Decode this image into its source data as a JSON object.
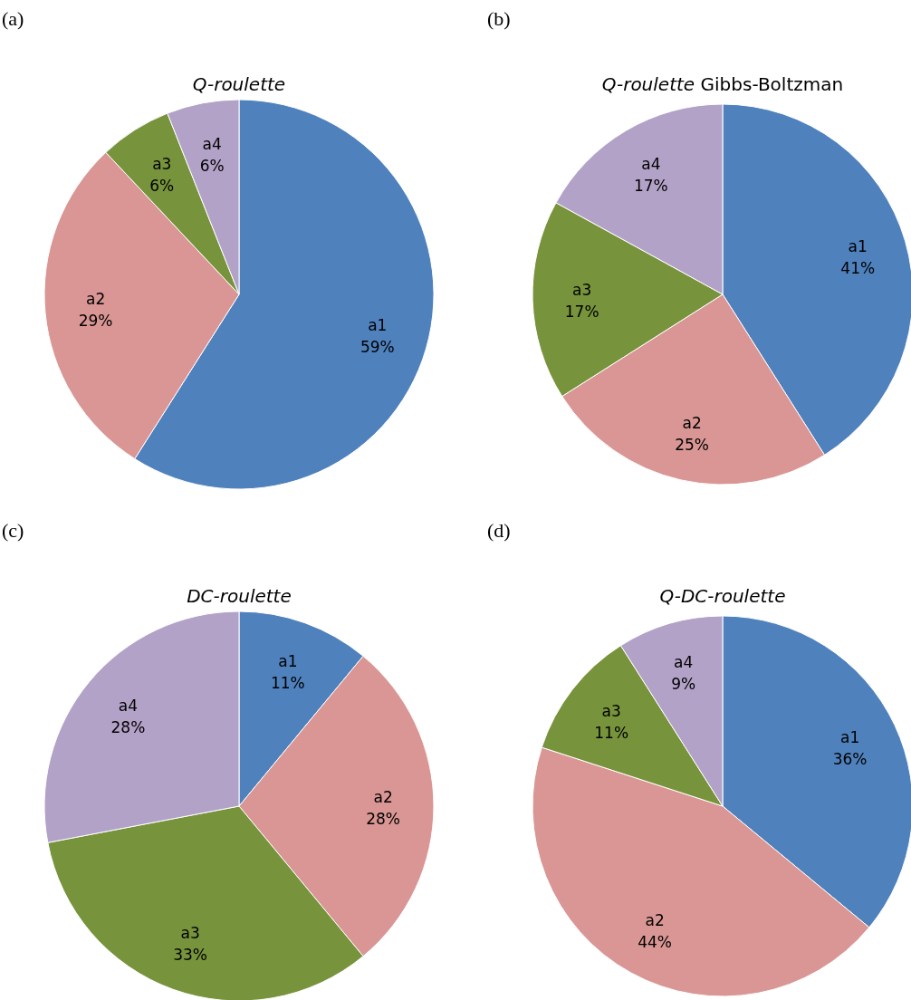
{
  "chart_data": [
    {
      "type": "pie",
      "title": "Q-roulette",
      "categories": [
        "a1",
        "a2",
        "a3",
        "a4"
      ],
      "values": [
        59,
        29,
        6,
        6
      ],
      "value_labels": [
        "59%",
        "29%",
        "6%",
        "6%"
      ],
      "colors": [
        "#4f81bd",
        "#d99694",
        "#77933c",
        "#b3a2c7"
      ],
      "annotations": [
        "(a)"
      ]
    },
    {
      "type": "pie",
      "title": "Q-roulette Gibbs-Boltzman",
      "categories": [
        "a1",
        "a2",
        "a3",
        "a4"
      ],
      "values": [
        41,
        25,
        17,
        17
      ],
      "value_labels": [
        "41%",
        "25%",
        "17%",
        "17%"
      ],
      "colors": [
        "#4f81bd",
        "#d99694",
        "#77933c",
        "#b3a2c7"
      ],
      "annotations": [
        "(b)"
      ]
    },
    {
      "type": "pie",
      "title": "DC-roulette",
      "categories": [
        "a1",
        "a2",
        "a3",
        "a4"
      ],
      "values": [
        11,
        28,
        33,
        28
      ],
      "value_labels": [
        "11%",
        "28%",
        "33%",
        "28%"
      ],
      "colors": [
        "#4f81bd",
        "#d99694",
        "#77933c",
        "#b3a2c7"
      ],
      "annotations": [
        "(c)"
      ]
    },
    {
      "type": "pie",
      "title": "Q-DC-roulette",
      "categories": [
        "a1",
        "a2",
        "a3",
        "a4"
      ],
      "values": [
        36,
        44,
        11,
        9
      ],
      "value_labels": [
        "36%",
        "44%",
        "11%",
        "9%"
      ],
      "colors": [
        "#4f81bd",
        "#d99694",
        "#77933c",
        "#b3a2c7"
      ],
      "annotations": [
        "(d)"
      ]
    }
  ]
}
